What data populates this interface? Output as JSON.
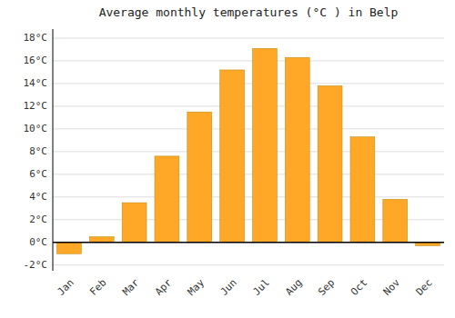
{
  "chart_data": {
    "type": "bar",
    "title": "Average monthly temperatures (°C ) in Belp",
    "categories": [
      "Jan",
      "Feb",
      "Mar",
      "Apr",
      "May",
      "Jun",
      "Jul",
      "Aug",
      "Sep",
      "Oct",
      "Nov",
      "Dec"
    ],
    "values": [
      -1.0,
      0.5,
      3.5,
      7.6,
      11.5,
      15.2,
      17.1,
      16.3,
      13.8,
      9.3,
      3.8,
      -0.3
    ],
    "color": "#FFA726",
    "ylim": [
      -2.5,
      18.8
    ],
    "yticks": [
      {
        "value": -2,
        "label": "-2°C"
      },
      {
        "value": 0,
        "label": "0°C"
      },
      {
        "value": 2,
        "label": "2°C"
      },
      {
        "value": 4,
        "label": "4°C"
      },
      {
        "value": 6,
        "label": "6°C"
      },
      {
        "value": 8,
        "label": "8°C"
      },
      {
        "value": 10,
        "label": "10°C"
      },
      {
        "value": 12,
        "label": "12°C"
      },
      {
        "value": 14,
        "label": "14°C"
      },
      {
        "value": 16,
        "label": "16°C"
      },
      {
        "value": 18,
        "label": "18°C"
      }
    ],
    "grid": true
  }
}
